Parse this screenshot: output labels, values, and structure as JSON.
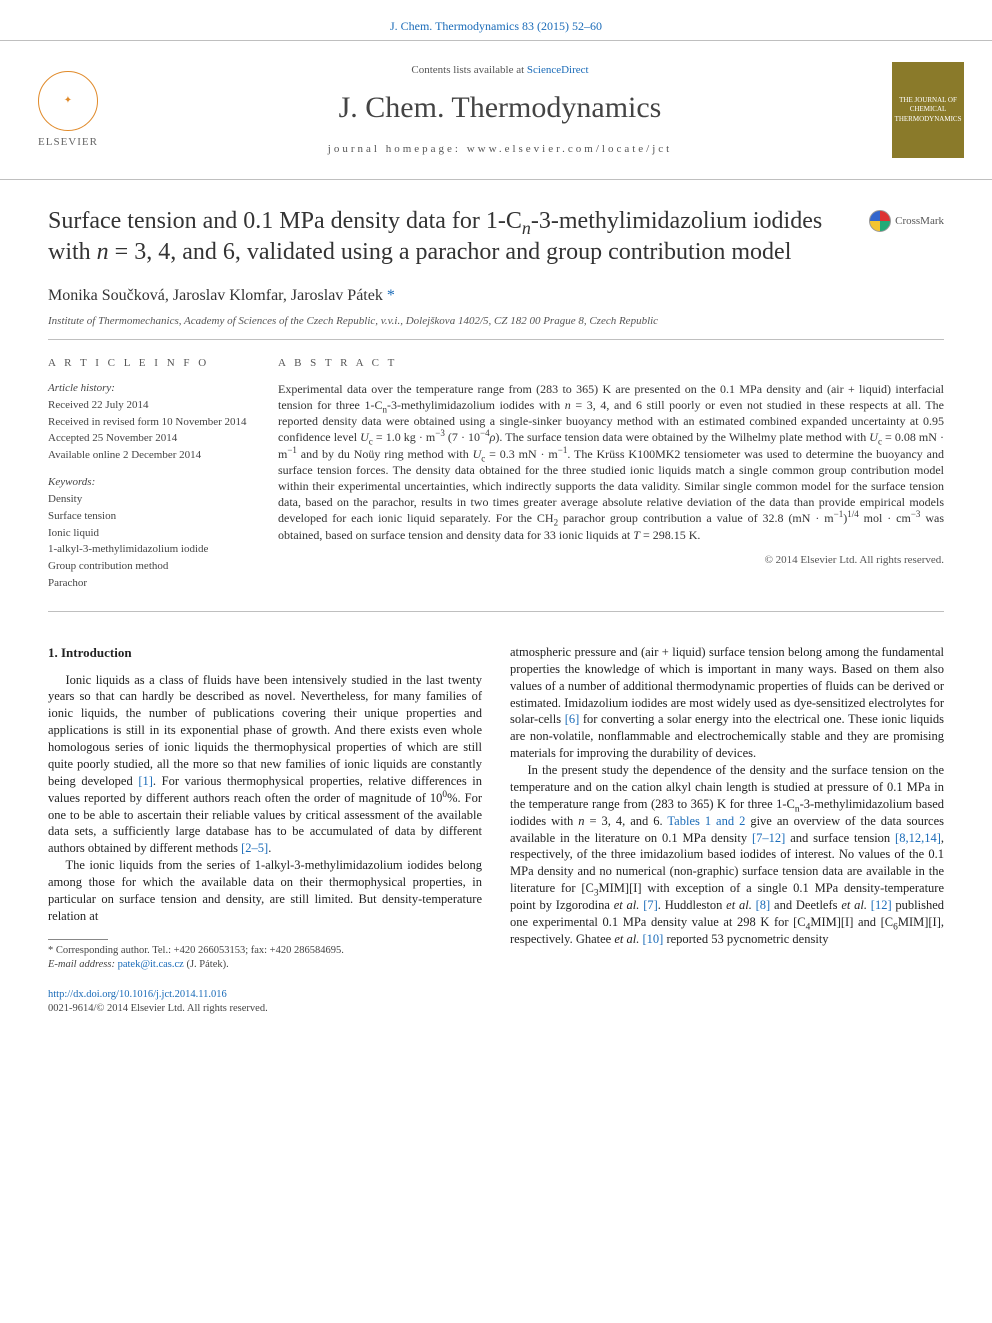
{
  "citation": "J. Chem. Thermodynamics 83 (2015) 52–60",
  "banner": {
    "contents_prefix": "Contents lists available at ",
    "sciencedirect": "ScienceDirect",
    "journal": "J. Chem. Thermodynamics",
    "homepage_label": "journal homepage: www.elsevier.com/locate/jct",
    "elsevier": "ELSEVIER",
    "cover_text": "THE JOURNAL OF CHEMICAL THERMODYNAMICS"
  },
  "crossmark": "CrossMark",
  "title_html": "Surface tension and 0.1 MPa density data for 1-C<sub><i>n</i></sub>-3-methylimidazolium iodides with <i>n</i> = 3, 4, and 6, validated using a parachor and group contribution model",
  "authors_html": "Monika Součková, Jaroslav Klomfar, Jaroslav Pátek <a class='ref-link' href='#'>*</a>",
  "affiliation": "Institute of Thermomechanics, Academy of Sciences of the Czech Republic, v.v.i., Dolejškova 1402/5, CZ 182 00 Prague 8, Czech Republic",
  "article_info_heading": "A R T I C L E   I N F O",
  "history_heading": "Article history:",
  "history": [
    "Received 22 July 2014",
    "Received in revised form 10 November 2014",
    "Accepted 25 November 2014",
    "Available online 2 December 2014"
  ],
  "keywords_heading": "Keywords:",
  "keywords": [
    "Density",
    "Surface tension",
    "Ionic liquid",
    "1-alkyl-3-methylimidazolium iodide",
    "Group contribution method",
    "Parachor"
  ],
  "abstract_heading": "A B S T R A C T",
  "abstract_html": "Experimental data over the temperature range from (283 to 365) K are presented on the 0.1 MPa density and (air + liquid) interfacial tension for three 1-C<sub>n</sub>-3-methylimidazolium iodides with <i>n</i> = 3, 4, and 6 still poorly or even not studied in these respects at all. The reported density data were obtained using a single-sinker buoyancy method with an estimated combined expanded uncertainty at 0.95 confidence level <i>U</i><sub>c</sub> = 1.0 kg · m<sup>−3</sup> (7 · 10<sup>−4</sup><i>ρ</i>). The surface tension data were obtained by the Wilhelmy plate method with <i>U</i><sub>c</sub> = 0.08 mN · m<sup>−1</sup> and by du Noüy ring method with <i>U</i><sub>c</sub> = 0.3 mN · m<sup>−1</sup>. The Krüss K100MK2 tensiometer was used to determine the buoyancy and surface tension forces. The density data obtained for the three studied ionic liquids match a single common group contribution model within their experimental uncertainties, which indirectly supports the data validity. Similar single common model for the surface tension data, based on the parachor, results in two times greater average absolute relative deviation of the data than provide empirical models developed for each ionic liquid separately. For the CH<sub>2</sub> parachor group contribution a value of 32.8 (mN · m<sup>−1</sup>)<sup>1/4</sup> mol · cm<sup>−3</sup> was obtained, based on surface tension and density data for 33 ionic liquids at <i>T</i> = 298.15 K.",
  "copyright": "© 2014 Elsevier Ltd. All rights reserved.",
  "section1_heading": "1. Introduction",
  "para1_html": "Ionic liquids as a class of fluids have been intensively studied in the last twenty years so that can hardly be described as novel. Nevertheless, for many families of ionic liquids, the number of publications covering their unique properties and applications is still in its exponential phase of growth. And there exists even whole homologous series of ionic liquids the thermophysical properties of which are still quite poorly studied, all the more so that new families of ionic liquids are constantly being developed <a class='ref-link' href='#'>[1]</a>. For various thermophysical properties, relative differences in values reported by different authors reach often the order of magnitude of 10<sup>0</sup>%. For one to be able to ascertain their reliable values by critical assessment of the available data sets, a sufficiently large database has to be accumulated of data by different authors obtained by different methods <a class='ref-link' href='#'>[2–5]</a>.",
  "para2_html": "The ionic liquids from the series of 1-alkyl-3-methylimidazolium iodides belong among those for which the available data on their thermophysical properties, in particular on surface tension and density, are still limited. But density-temperature relation at",
  "para3_html": "atmospheric pressure and (air + liquid) surface tension belong among the fundamental properties the knowledge of which is important in many ways. Based on them also values of a number of additional thermodynamic properties of fluids can be derived or estimated. Imidazolium iodides are most widely used as dye-sensitized electrolytes for solar-cells <a class='ref-link' href='#'>[6]</a> for converting a solar energy into the electrical one. These ionic liquids are non-volatile, nonflammable and electrochemically stable and they are promising materials for improving the durability of devices.",
  "para4_html": "In the present study the dependence of the density and the surface tension on the temperature and on the cation alkyl chain length is studied at pressure of 0.1 MPa in the temperature range from (283 to 365) K for three 1-C<sub>n</sub>-3-methylimidazolium based iodides with <i>n</i> = 3, 4, and 6. <a class='ref-link' href='#'>Tables 1 and 2</a> give an overview of the data sources available in the literature on 0.1 MPa density <a class='ref-link' href='#'>[7–12]</a> and surface tension <a class='ref-link' href='#'>[8,12,14]</a>, respectively, of the three imidazolium based iodides of interest. No values of the 0.1 MPa density and no numerical (non-graphic) surface tension data are available in the literature for [C<sub>3</sub>MIM][I] with exception of a single 0.1 MPa density-temperature point by Izgorodina <i>et al.</i> <a class='ref-link' href='#'>[7]</a>. Huddleston <i>et al.</i> <a class='ref-link' href='#'>[8]</a> and Deetlefs <i>et al.</i> <a class='ref-link' href='#'>[12]</a> published one experimental 0.1 MPa density value at 298 K for [C<sub>4</sub>MIM][I] and [C<sub>6</sub>MIM][I], respectively. Ghatee <i>et al.</i> <a class='ref-link' href='#'>[10]</a> reported 53 pycnometric density",
  "footnotes": {
    "corr_html": "* Corresponding author. Tel.: +420 266053153; fax: +420 286584695.",
    "email_label": "E-mail address: ",
    "email": "patek@it.cas.cz",
    "email_suffix": " (J. Pátek)."
  },
  "footer": {
    "doi": "http://dx.doi.org/10.1016/j.jct.2014.11.016",
    "issn_line": "0021-9614/© 2014 Elsevier Ltd. All rights reserved."
  }
}
